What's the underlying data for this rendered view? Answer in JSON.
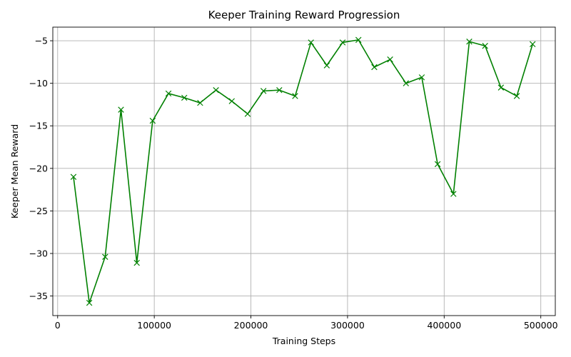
{
  "chart_data": {
    "type": "line",
    "title": "Keeper Training Reward Progression",
    "xlabel": "Training Steps",
    "ylabel": "Keeper Mean Reward",
    "xlim": [
      -5000,
      515000
    ],
    "ylim": [
      -37.3,
      -3.4
    ],
    "xticks": [
      0,
      100000,
      200000,
      300000,
      400000,
      500000
    ],
    "xtick_labels": [
      "0",
      "100000",
      "200000",
      "300000",
      "400000",
      "500000"
    ],
    "yticks": [
      -35,
      -30,
      -25,
      -20,
      -15,
      -10,
      -5
    ],
    "ytick_labels": [
      "−35",
      "−30",
      "−25",
      "−20",
      "−15",
      "−10",
      "−5"
    ],
    "grid": true,
    "marker": "x",
    "color": "#008000",
    "series": [
      {
        "x": [
          16384,
          32768,
          49152,
          65536,
          81920,
          98304,
          114688,
          131072,
          147456,
          163840,
          180224,
          196608,
          212992,
          229376,
          245760,
          262144,
          278528,
          294912,
          311296,
          327680,
          344064,
          360448,
          376832,
          393216,
          409600,
          425984,
          442368,
          458752,
          475136,
          491520
        ],
        "y": [
          -21.0,
          -35.8,
          -30.4,
          -13.1,
          -31.1,
          -14.4,
          -11.2,
          -11.7,
          -12.3,
          -10.8,
          -12.1,
          -13.6,
          -10.9,
          -10.8,
          -11.5,
          -5.2,
          -7.9,
          -5.2,
          -4.9,
          -8.1,
          -7.2,
          -10.0,
          -9.3,
          -19.5,
          -23.0,
          -5.1,
          -5.6,
          -10.5,
          -11.5,
          -5.4
        ]
      }
    ]
  }
}
